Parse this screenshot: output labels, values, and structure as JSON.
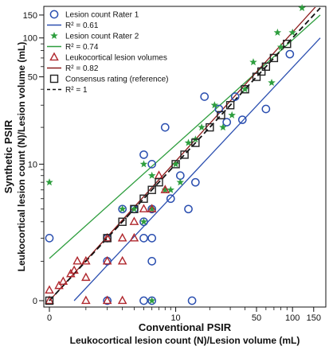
{
  "chart_data": {
    "type": "scatter",
    "x_axis": {
      "title": "Conventional PSIR",
      "subtitle": "Leukocortical lesion count (N)/Lesion volume (mL)",
      "ticks": [
        0,
        10,
        50,
        100,
        150
      ],
      "tick_labels": [
        "0",
        "10",
        "50",
        "100",
        "150"
      ],
      "minor_ticks": [
        1,
        2,
        3,
        4,
        5,
        6,
        7,
        8,
        9,
        20,
        30,
        40,
        60,
        70,
        80,
        90
      ],
      "scale": "log1p",
      "range": [
        0,
        170
      ]
    },
    "y_axis": {
      "title": "Synthetic PSIR",
      "subtitle": "Leukocortical lesion count (N)/Lesion volume (mL)",
      "ticks": [
        0,
        10,
        50,
        100,
        150
      ],
      "tick_labels": [
        "0",
        "10",
        "50",
        "100",
        "150"
      ],
      "minor_ticks": [
        1,
        2,
        3,
        4,
        5,
        6,
        7,
        8,
        9,
        20,
        30,
        40,
        60,
        70,
        80,
        90
      ],
      "scale": "log1p",
      "range": [
        0,
        170
      ]
    },
    "grid": false,
    "legend_position": "top-left",
    "legend": [
      {
        "label": "Lesion count Rater 1",
        "marker": "circle",
        "color": "#2b4fb0"
      },
      {
        "label": "R² = 0.61",
        "marker": "line",
        "color": "#2b4fb0"
      },
      {
        "label": "Lesion count Rater 2",
        "marker": "star",
        "color": "#2e9e3e"
      },
      {
        "label": "R² = 0.74",
        "marker": "line",
        "color": "#2e9e3e"
      },
      {
        "label": "Leukocortical lesion volumes",
        "marker": "triangle",
        "color": "#b0272d"
      },
      {
        "label": "R² = 0.82",
        "marker": "line",
        "color": "#8b1a1a"
      },
      {
        "label": "Consensus rating (reference)",
        "marker": "square",
        "color": "#222222"
      },
      {
        "label": "R² = 1",
        "marker": "dashed-line",
        "color": "#111111"
      }
    ],
    "series": [
      {
        "name": "Lesion count Rater 1",
        "marker": "circle",
        "color": "#2b4fb0",
        "points": [
          [
            0,
            2
          ],
          [
            2,
            0
          ],
          [
            5,
            0
          ],
          [
            6,
            0
          ],
          [
            14,
            0
          ],
          [
            2,
            1
          ],
          [
            2,
            2
          ],
          [
            3,
            4
          ],
          [
            5,
            2
          ],
          [
            6,
            2
          ],
          [
            6,
            1
          ],
          [
            5,
            3
          ],
          [
            6,
            4
          ],
          [
            5,
            12
          ],
          [
            8,
            20
          ],
          [
            9,
            5
          ],
          [
            11,
            8
          ],
          [
            15,
            7
          ],
          [
            13,
            4
          ],
          [
            18,
            35
          ],
          [
            24,
            28
          ],
          [
            28,
            22
          ],
          [
            33,
            35
          ],
          [
            38,
            23
          ],
          [
            60,
            28
          ],
          [
            95,
            75
          ],
          [
            6,
            10
          ],
          [
            4,
            4
          ]
        ]
      },
      {
        "name": "Lesion count Rater 2",
        "marker": "star",
        "color": "#2e9e3e",
        "points": [
          [
            0,
            7
          ],
          [
            3,
            4
          ],
          [
            4,
            4
          ],
          [
            5,
            10
          ],
          [
            6,
            8
          ],
          [
            6,
            0
          ],
          [
            5,
            3
          ],
          [
            8,
            6
          ],
          [
            9,
            6
          ],
          [
            10,
            10
          ],
          [
            11,
            7
          ],
          [
            13,
            15
          ],
          [
            15,
            16
          ],
          [
            17,
            20
          ],
          [
            22,
            30
          ],
          [
            26,
            20
          ],
          [
            31,
            25
          ],
          [
            40,
            40
          ],
          [
            47,
            65
          ],
          [
            67,
            45
          ],
          [
            80,
            85
          ],
          [
            100,
            110
          ],
          [
            120,
            170
          ],
          [
            75,
            110
          ],
          [
            6,
            4
          ]
        ]
      },
      {
        "name": "Leukocortical lesion volumes",
        "marker": "triangle",
        "color": "#b0272d",
        "points": [
          [
            0,
            0
          ],
          [
            0,
            0.2
          ],
          [
            0.2,
            0.3
          ],
          [
            0.3,
            0.4
          ],
          [
            0.5,
            0.6
          ],
          [
            0.6,
            0.7
          ],
          [
            0.7,
            1
          ],
          [
            1,
            1
          ],
          [
            1,
            0
          ],
          [
            2,
            0
          ],
          [
            3,
            0
          ],
          [
            2,
            2
          ],
          [
            3,
            2
          ],
          [
            3,
            1
          ],
          [
            4,
            2
          ],
          [
            4,
            3
          ],
          [
            5,
            4
          ],
          [
            6,
            4
          ],
          [
            7,
            8
          ],
          [
            8,
            6
          ],
          [
            2,
            1
          ],
          [
            1,
            0.5
          ]
        ]
      },
      {
        "name": "Consensus rating (reference)",
        "marker": "square",
        "color": "#222222",
        "points": [
          [
            0,
            0
          ],
          [
            2,
            2
          ],
          [
            3,
            3
          ],
          [
            4,
            4
          ],
          [
            5,
            5
          ],
          [
            6,
            6
          ],
          [
            7,
            7
          ],
          [
            10,
            10
          ],
          [
            12,
            12
          ],
          [
            15,
            15
          ],
          [
            20,
            20
          ],
          [
            25,
            25
          ],
          [
            30,
            30
          ],
          [
            40,
            40
          ],
          [
            50,
            50
          ],
          [
            55,
            55
          ],
          [
            60,
            60
          ],
          [
            70,
            70
          ],
          [
            90,
            90
          ]
        ]
      }
    ],
    "fit_lines": [
      {
        "name": "R² = 0.61",
        "color": "#2b4fb0",
        "dash": false,
        "from": [
          0.6,
          0
        ],
        "to": [
          170,
          100
        ]
      },
      {
        "name": "R² = 0.74",
        "color": "#2e9e3e",
        "dash": false,
        "from": [
          0,
          1.1
        ],
        "to": [
          170,
          150
        ]
      },
      {
        "name": "R² = 0.82",
        "color": "#8b1a1a",
        "dash": false,
        "from": [
          0,
          0
        ],
        "to": [
          170,
          190
        ]
      },
      {
        "name": "R² = 1",
        "color": "#111111",
        "dash": true,
        "from": [
          0,
          0
        ],
        "to": [
          170,
          170
        ]
      }
    ]
  }
}
